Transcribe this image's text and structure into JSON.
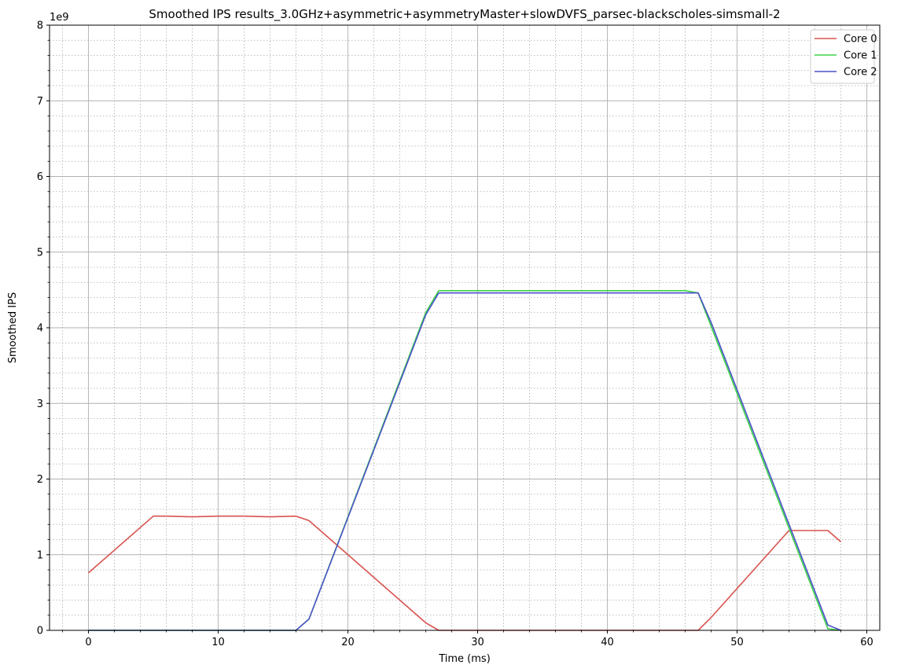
{
  "chart_data": {
    "type": "line",
    "title": "Smoothed IPS results_3.0GHz+asymmetric+asymmetryMaster+slowDVFS_parsec-blackscholes-simsmall-2",
    "xlabel": "Time (ms)",
    "ylabel": "Smoothed IPS",
    "y_offset_label": "1e9",
    "xlim": [
      -3,
      61
    ],
    "ylim": [
      0,
      8
    ],
    "x_ticks": [
      0,
      10,
      20,
      30,
      40,
      50,
      60
    ],
    "x_tick_labels": [
      "0",
      "10",
      "20",
      "30",
      "40",
      "50",
      "60"
    ],
    "y_ticks": [
      0,
      1,
      2,
      3,
      4,
      5,
      6,
      7,
      8
    ],
    "y_tick_labels": [
      "0",
      "1",
      "2",
      "3",
      "4",
      "5",
      "6",
      "7",
      "8"
    ],
    "x_minor_step": 2,
    "y_minor_step": 0.2,
    "grid": {
      "major": true,
      "minor": true
    },
    "legend_position": "top-right",
    "series": [
      {
        "name": "Core 0",
        "color": "#d9534f",
        "x": [
          0,
          5,
          6,
          8,
          10,
          12,
          14,
          16,
          17,
          26,
          27,
          47,
          48,
          54,
          57,
          58
        ],
        "y": [
          0.76,
          1.51,
          1.51,
          1.5,
          1.51,
          1.51,
          1.5,
          1.51,
          1.45,
          0.1,
          0,
          0,
          0.17,
          1.32,
          1.32,
          1.17
        ]
      },
      {
        "name": "Core 1",
        "color": "#3fd44a",
        "x": [
          0,
          16,
          17,
          26,
          27,
          46,
          47,
          48,
          57,
          58
        ],
        "y": [
          0,
          0,
          0.15,
          4.2,
          4.49,
          4.49,
          4.46,
          4.02,
          0.02,
          0
        ]
      },
      {
        "name": "Core 2",
        "color": "#4b52c8",
        "x": [
          0,
          16,
          17,
          26,
          27,
          47,
          48,
          57,
          58
        ],
        "y": [
          0,
          0,
          0.15,
          4.17,
          4.46,
          4.46,
          4.07,
          0.07,
          0
        ]
      }
    ]
  }
}
